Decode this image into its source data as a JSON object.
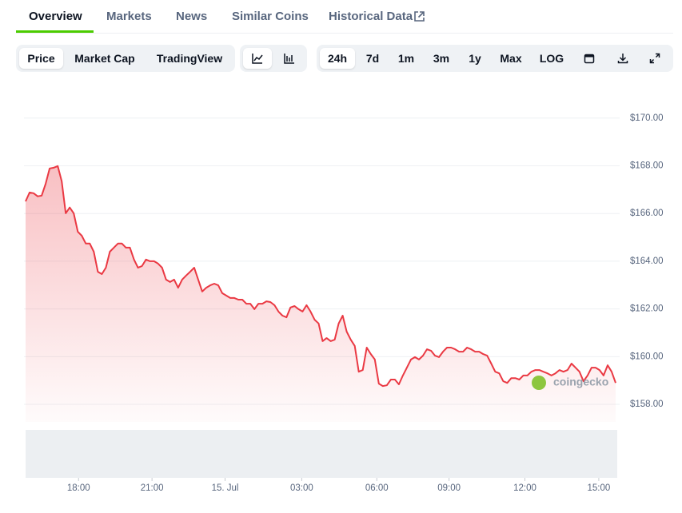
{
  "tabs": [
    "Overview",
    "Markets",
    "News",
    "Similar Coins",
    "Historical Data"
  ],
  "views": [
    "Price",
    "Market Cap",
    "TradingView"
  ],
  "ranges": [
    "24h",
    "7d",
    "1m",
    "3m",
    "1y",
    "Max",
    "LOG"
  ],
  "watermark": "coingecko",
  "chart_data": {
    "type": "area",
    "color": "#ea3943",
    "grid": true,
    "values": [
      166.51,
      166.88,
      166.85,
      166.72,
      166.75,
      167.25,
      167.89,
      167.92,
      167.99,
      167.35,
      166.01,
      166.25,
      166.01,
      165.24,
      165.07,
      164.74,
      164.74,
      164.4,
      163.56,
      163.46,
      163.73,
      164.4,
      164.57,
      164.74,
      164.74,
      164.57,
      164.57,
      164.07,
      163.73,
      163.8,
      164.07,
      164.0,
      164.0,
      163.9,
      163.73,
      163.23,
      163.13,
      163.23,
      162.89,
      163.23,
      163.4,
      163.56,
      163.73,
      163.23,
      162.73,
      162.89,
      162.99,
      163.06,
      162.99,
      162.66,
      162.56,
      162.46,
      162.46,
      162.39,
      162.39,
      162.22,
      162.22,
      161.99,
      162.22,
      162.22,
      162.32,
      162.29,
      162.16,
      161.89,
      161.72,
      161.65,
      162.06,
      162.12,
      161.99,
      161.89,
      162.16,
      161.89,
      161.55,
      161.39,
      160.65,
      160.78,
      160.65,
      160.71,
      161.39,
      161.72,
      161.05,
      160.71,
      160.45,
      159.37,
      159.44,
      160.38,
      160.11,
      159.88,
      158.87,
      158.77,
      158.8,
      159.04,
      159.04,
      158.84,
      159.21,
      159.54,
      159.88,
      159.98,
      159.88,
      160.04,
      160.31,
      160.25,
      160.04,
      159.98,
      160.21,
      160.38,
      160.38,
      160.31,
      160.21,
      160.21,
      160.38,
      160.31,
      160.21,
      160.21,
      160.11,
      160.04,
      159.71,
      159.37,
      159.3,
      158.97,
      158.9,
      159.1,
      159.1,
      159.04,
      159.21,
      159.21,
      159.37,
      159.44,
      159.44,
      159.37,
      159.3,
      159.21,
      159.3,
      159.44,
      159.37,
      159.44,
      159.71,
      159.54,
      159.37,
      158.97,
      159.21,
      159.54,
      159.54,
      159.44,
      159.21,
      159.64,
      159.37,
      158.9
    ],
    "ylim": [
      157.6,
      171.6
    ],
    "yticks": [
      {
        "value": 158,
        "label": "$158.00"
      },
      {
        "value": 160,
        "label": "$160.00"
      },
      {
        "value": 162,
        "label": "$162.00"
      },
      {
        "value": 164,
        "label": "$164.00"
      },
      {
        "value": 166,
        "label": "$166.00"
      },
      {
        "value": 168,
        "label": "$168.00"
      },
      {
        "value": 170,
        "label": "$170.00"
      }
    ],
    "xticks": [
      {
        "value": 13.2,
        "label": "18:00"
      },
      {
        "value": 31.5,
        "label": "21:00"
      },
      {
        "value": 49.7,
        "label": "15. Jul"
      },
      {
        "value": 68.8,
        "label": "03:00"
      },
      {
        "value": 87.5,
        "label": "06:00"
      },
      {
        "value": 105.5,
        "label": "09:00"
      },
      {
        "value": 124.4,
        "label": "12:00"
      },
      {
        "value": 142.8,
        "label": "15:00"
      }
    ]
  }
}
